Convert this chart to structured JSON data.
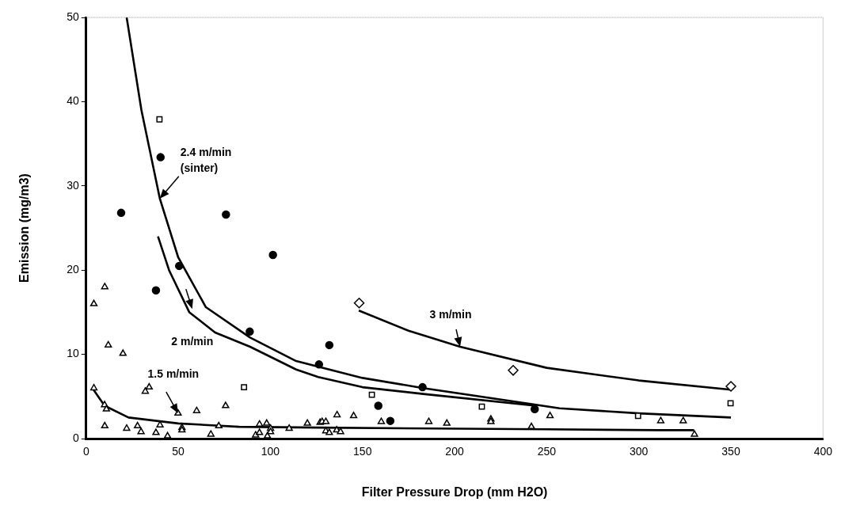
{
  "chart_data": {
    "type": "scatter",
    "xlabel": "Filter Pressure Drop (mm H2O)",
    "ylabel": "Emission (mg/m3)",
    "xlim": [
      0,
      400
    ],
    "ylim": [
      0,
      50
    ],
    "xticks": [
      0,
      50,
      100,
      150,
      200,
      250,
      300,
      350,
      400
    ],
    "yticks": [
      0,
      10,
      20,
      30,
      40,
      50
    ],
    "grid": false,
    "legend": false,
    "series": [
      {
        "marker": "circle",
        "color": "#000000",
        "x": [
          19,
          40.4,
          37.9,
          50.5,
          75.9,
          101.4,
          88.8,
          126.4,
          132,
          158.6,
          165.1,
          182.6,
          243.5
        ],
        "values": [
          26.8,
          33.4,
          17.6,
          20.5,
          26.6,
          21.8,
          12.7,
          8.8,
          11.1,
          3.9,
          2.1,
          6.1,
          3.5
        ]
      },
      {
        "marker": "square",
        "color": "#000000",
        "x": [
          39.8,
          85.7,
          155.1,
          214.8,
          299.6,
          349.8
        ],
        "values": [
          37.9,
          6.1,
          5.2,
          3.8,
          2.7,
          4.2
        ]
      },
      {
        "marker": "diamond",
        "color": "#000000",
        "x": [
          148.2,
          231.8,
          350
        ],
        "values": [
          16.1,
          8.1,
          6.2
        ]
      },
      {
        "marker": "triangle",
        "color": "#000000",
        "x": [
          4.2,
          10.1,
          12,
          20,
          4.2,
          10,
          11,
          10.1,
          22,
          27.9,
          29.8,
          32.1,
          34.2,
          37.9,
          40.1,
          44.2,
          49.9,
          52,
          52,
          60,
          67.7,
          72,
          75.7,
          92,
          94.1,
          94.1,
          98,
          98.4,
          100.1,
          100.1,
          110.2,
          120.1,
          127,
          128.1,
          130.1,
          130.1,
          132,
          136,
          138.1,
          136.2,
          145.2,
          160.2,
          186,
          195.8,
          219.7,
          219.7,
          241.7,
          251.8,
          311.9,
          324.1,
          330.2
        ],
        "values": [
          16,
          18,
          11.1,
          10.1,
          6,
          4,
          3.5,
          1.5,
          1.2,
          1.5,
          0.8,
          5.6,
          6.1,
          0.7,
          1.6,
          0.3,
          3,
          1.3,
          1,
          3.3,
          0.5,
          1.5,
          3.9,
          0.4,
          1.7,
          0.7,
          1.8,
          0.3,
          1.2,
          0.8,
          1.2,
          1.8,
          1.9,
          2,
          2,
          0.9,
          0.7,
          1,
          0.8,
          2.8,
          2.7,
          2,
          2,
          1.8,
          2.3,
          2,
          1.4,
          2.7,
          2.1,
          2.1,
          0.5
        ]
      },
      {
        "type": "line",
        "marker": "none",
        "color": "#000000",
        "x": [
          22,
          30,
          40,
          50,
          65,
          89,
          114,
          150,
          183,
          257,
          300,
          350
        ],
        "values": [
          50,
          39,
          28.5,
          21.5,
          15.6,
          12,
          9.2,
          7.2,
          6,
          3.6,
          3,
          2.5
        ]
      },
      {
        "type": "line",
        "marker": "none",
        "color": "#000000",
        "x": [
          39,
          45,
          56,
          70,
          89,
          114,
          126,
          150,
          183,
          244
        ],
        "values": [
          24,
          20,
          15,
          12.6,
          10.9,
          8.2,
          7.3,
          6.1,
          5.3,
          3.9
        ]
      },
      {
        "type": "line",
        "marker": "none",
        "color": "#000000",
        "x": [
          148,
          175,
          203,
          250,
          300,
          350
        ],
        "values": [
          15.2,
          12.8,
          10.9,
          8.4,
          6.9,
          5.8
        ]
      },
      {
        "type": "line",
        "marker": "none",
        "color": "#000000",
        "x": [
          4,
          10,
          23,
          50,
          83,
          127,
          188,
          250,
          311,
          330
        ],
        "values": [
          5.8,
          3.9,
          2.5,
          1.8,
          1.4,
          1.3,
          1.2,
          1.1,
          1,
          1
        ]
      }
    ],
    "annotations": [
      {
        "text": "2.4 m/min\n(sinter)",
        "x": 40,
        "y": 28.5
      },
      {
        "text": "2 m/min",
        "x": 57.6,
        "y": 15.4
      },
      {
        "text": "1.5 m/min",
        "x": 49.9,
        "y": 3
      },
      {
        "text": "3 m/min",
        "x": 203,
        "y": 10.9
      }
    ]
  }
}
